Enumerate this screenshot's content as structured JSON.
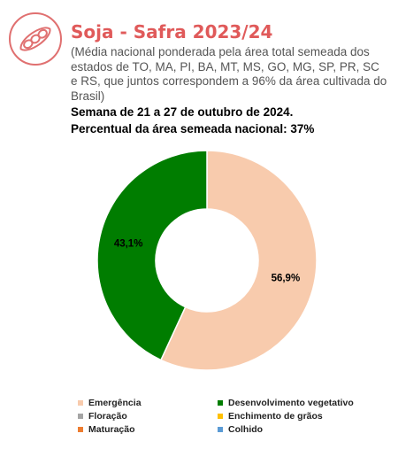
{
  "header": {
    "title": "Soja - Safra 2023/24",
    "subtitle": "(Média nacional ponderada pela área total semeada dos estados de TO, MA, PI, BA, MT, MS, GO, MG, SP, PR, SC e RS, que juntos correspondem a 96% da área cultivada do Brasil)",
    "week": "Semana de 21 a 27 de outubro de 2024.",
    "area_percent": "Percentual da área semeada nacional: 37%"
  },
  "logo_icon": "soybean-pod-icon",
  "colors": {
    "title": "#e05a5a",
    "logo": "#e07070"
  },
  "chart_data": {
    "type": "pie",
    "title": "",
    "categories": [
      "Emergência",
      "Desenvolvimento vegetativo",
      "Floração",
      "Enchimento de grãos",
      "Maturação",
      "Colhido"
    ],
    "values": [
      56.9,
      43.1,
      0,
      0,
      0,
      0
    ],
    "data_labels": [
      "56,9%",
      "43,1%",
      "",
      "",
      "",
      ""
    ],
    "colors": [
      "#f8cbad",
      "#007d00",
      "#a5a5a5",
      "#ffc000",
      "#ed7d31",
      "#5b9bd5"
    ],
    "legend_position": "bottom",
    "donut": true
  }
}
